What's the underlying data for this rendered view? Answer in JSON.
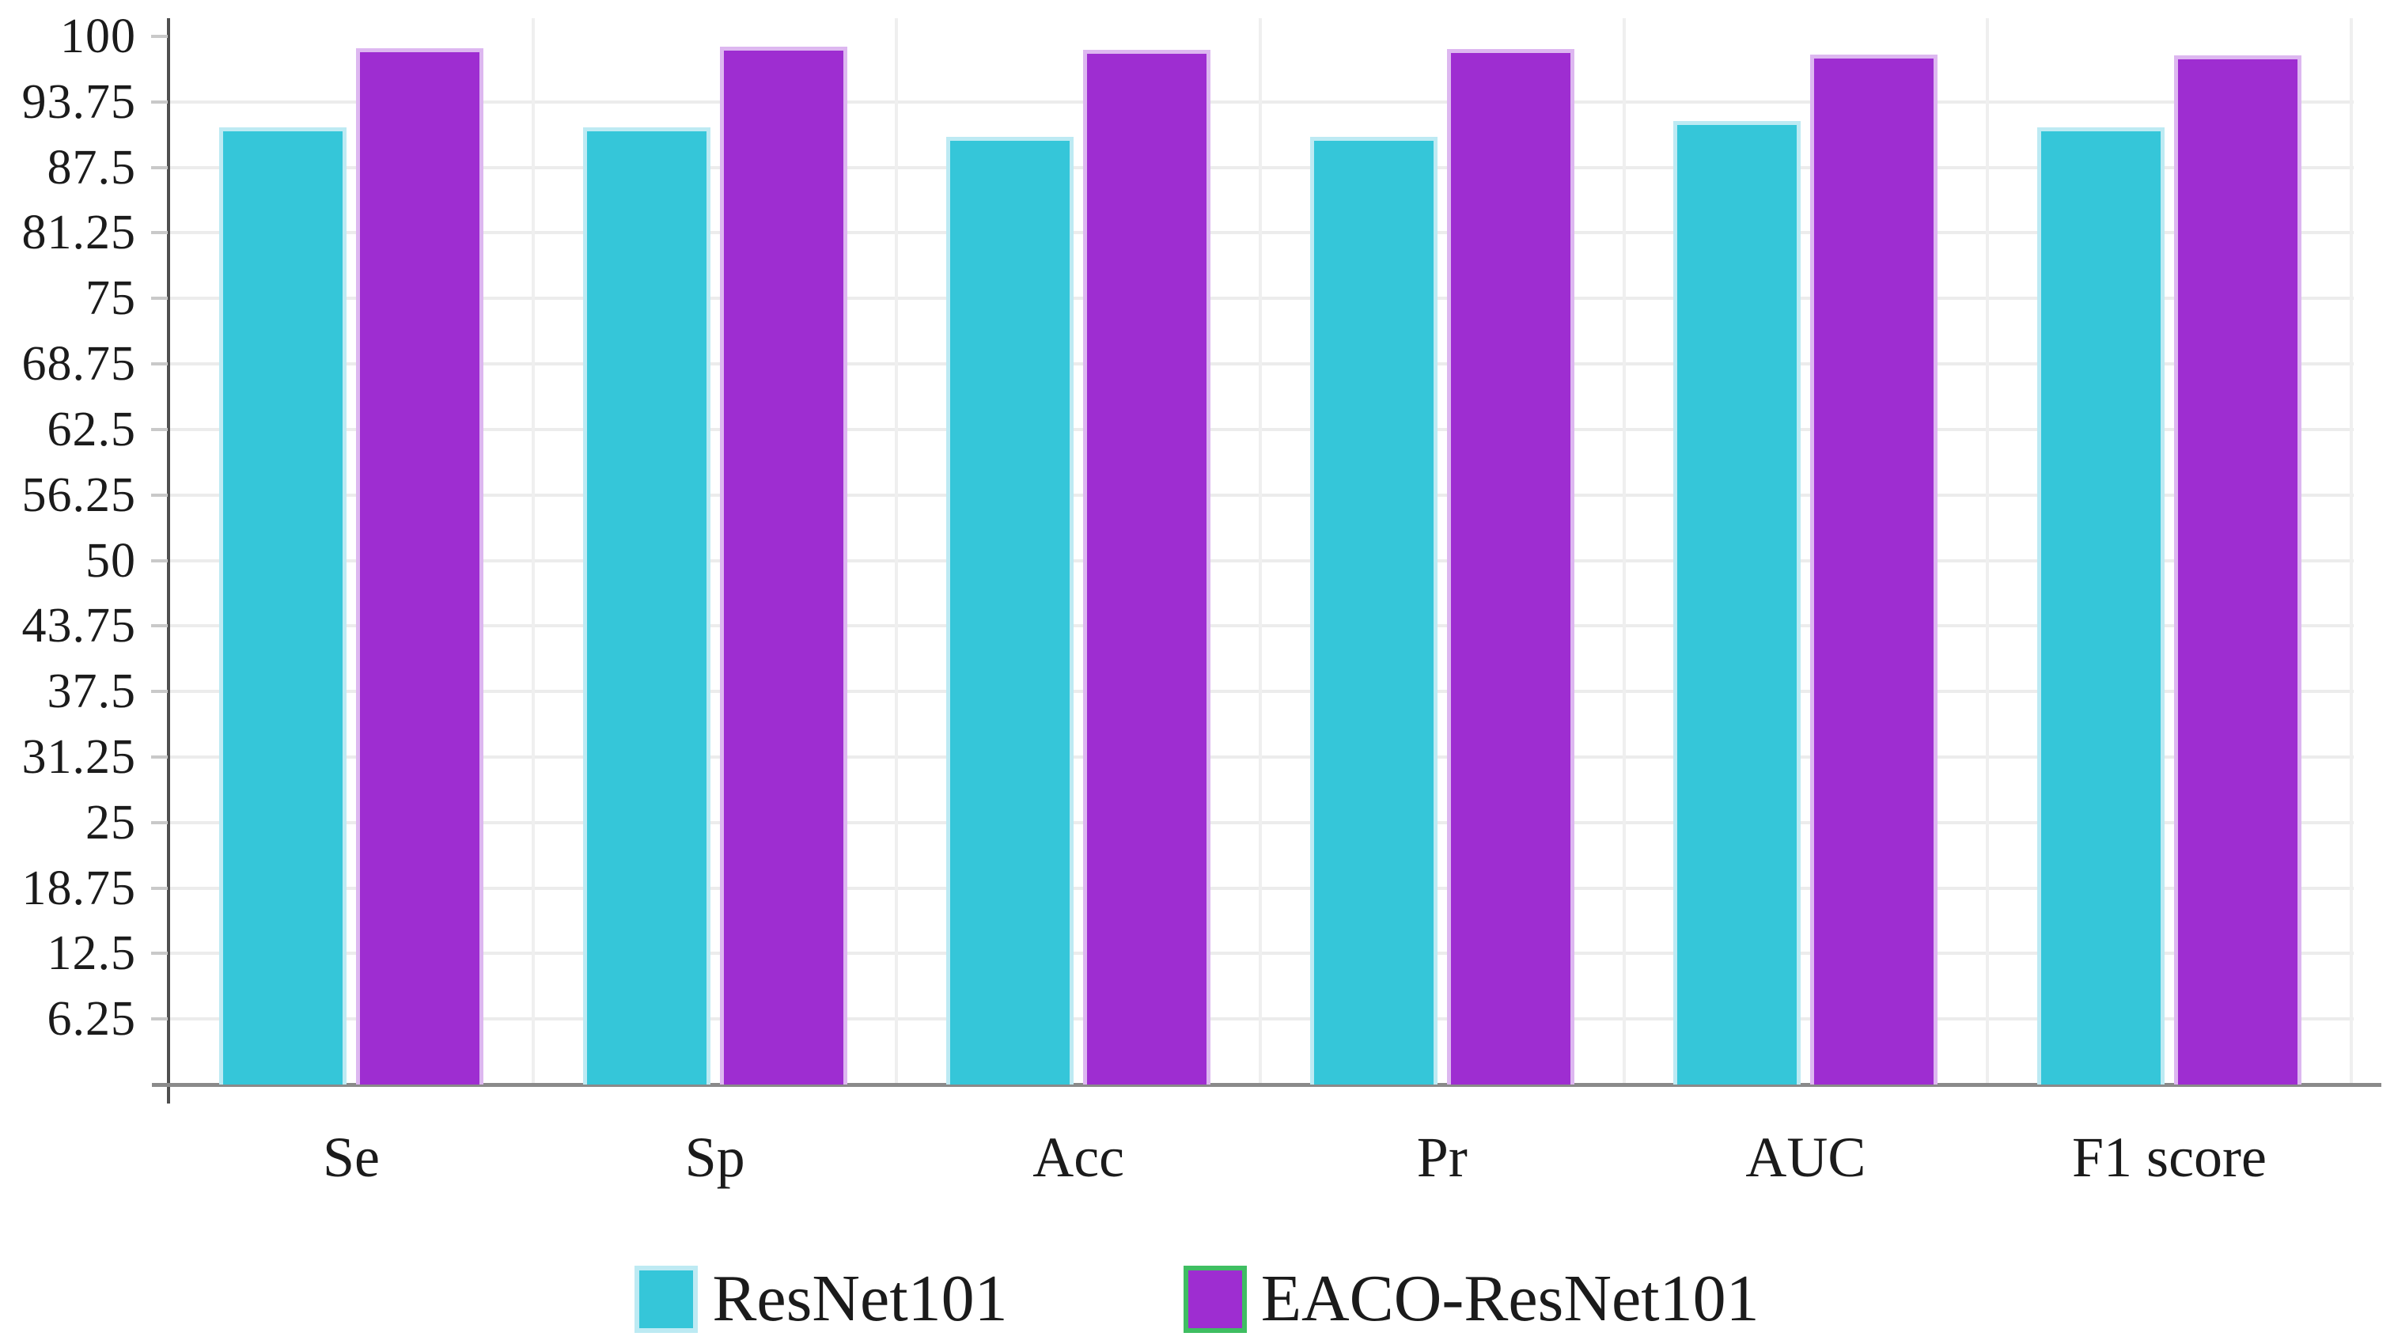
{
  "figure": {
    "background": "#ffffff",
    "text_color": "#1B1B1B"
  },
  "chart_data": {
    "type": "bar",
    "title": "",
    "xlabel": "",
    "ylabel": "",
    "categories": [
      "Se",
      "Sp",
      "Acc",
      "Pr",
      "AUC",
      "F1 score"
    ],
    "series": [
      {
        "name": "ResNet101",
        "color": "#35C6D9",
        "stroke": "#BDEAF3",
        "legend_border": "#BDEAF3",
        "values": [
          91.3,
          91.3,
          90.4,
          90.4,
          91.9,
          91.3
        ]
      },
      {
        "name": "EACO-ResNet101",
        "color": "#9E2DD1",
        "stroke": "#DDB7F0",
        "legend_border": "#3FBE62",
        "values": [
          98.9,
          99.0,
          98.7,
          98.8,
          98.3,
          98.2
        ]
      }
    ],
    "ylim": [
      0,
      100
    ],
    "y_tick_values": [
      100,
      93.75,
      87.5,
      81.25,
      75,
      68.75,
      62.5,
      56.25,
      50,
      43.75,
      37.5,
      31.25,
      25,
      18.75,
      12.5,
      6.25
    ],
    "y_tick_labels": [
      "100",
      "93.75",
      "87.5",
      "81.25",
      "75",
      "68.75",
      "62.5",
      "56.25",
      "50",
      "43.75",
      "37.5",
      "31.25",
      "25",
      "18.75",
      "12.5",
      "6.25"
    ],
    "grid": "horizontal lines at every y tick except 100; vertical lines at category boundaries",
    "legend_position": "bottom-center",
    "axis_colors": {
      "y_axis_line": "#4F4F4F",
      "x_axis_line": "#8A8A8A",
      "tick": "#C9C9C9",
      "h_gridline": "#ECECEC",
      "v_gridline": "#EFEFEF"
    }
  }
}
